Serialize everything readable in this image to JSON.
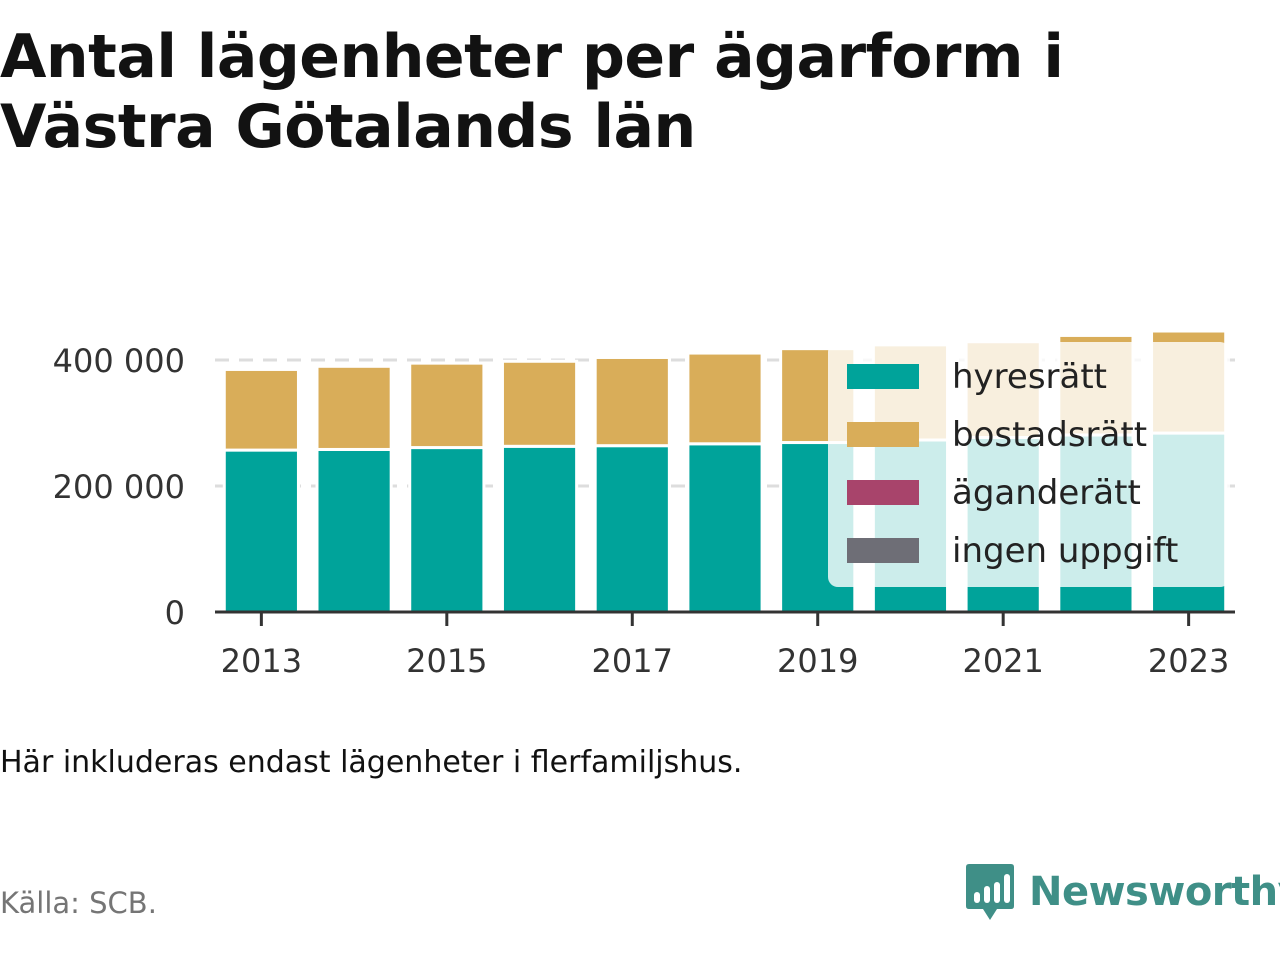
{
  "title_lines": [
    "Antal lägenheter per ägarform i",
    "Västra Götalands län"
  ],
  "note": "Här inkluderas endast lägenheter i flerfamiljshus.",
  "source": "Källa: SCB.",
  "brand": {
    "name": "Newsworthy",
    "icon": "newsworthy-logo-icon",
    "color": "#3f8f87"
  },
  "chart_data": {
    "type": "bar",
    "stacked": true,
    "categories": [
      2013,
      2014,
      2015,
      2016,
      2017,
      2018,
      2019,
      2020,
      2021,
      2022,
      2023
    ],
    "x_tick_labels": [
      "2013",
      "2015",
      "2017",
      "2019",
      "2021",
      "2023"
    ],
    "y_ticks": [
      0,
      200000,
      400000
    ],
    "y_tick_labels": [
      "0",
      "200 000",
      "400 000"
    ],
    "ylim": [
      0,
      460000
    ],
    "grid": true,
    "legend_position": "top-right",
    "series": [
      {
        "name": "hyresrätt",
        "color": "#00a39a",
        "values": [
          257000,
          258000,
          261000,
          263000,
          264000,
          267000,
          269000,
          273000,
          277000,
          281000,
          284000
        ]
      },
      {
        "name": "bostadsrätt",
        "color": "#d9ad59",
        "values": [
          128000,
          132000,
          134000,
          135000,
          140000,
          144000,
          149000,
          151000,
          152000,
          158000,
          162000
        ]
      },
      {
        "name": "äganderätt",
        "color": "#a8446b",
        "values": [
          0,
          0,
          0,
          0,
          0,
          0,
          0,
          0,
          0,
          0,
          0
        ]
      },
      {
        "name": "ingen uppgift",
        "color": "#6e6e76",
        "values": [
          0,
          0,
          0,
          0,
          0,
          0,
          0,
          0,
          0,
          0,
          0
        ]
      }
    ]
  }
}
